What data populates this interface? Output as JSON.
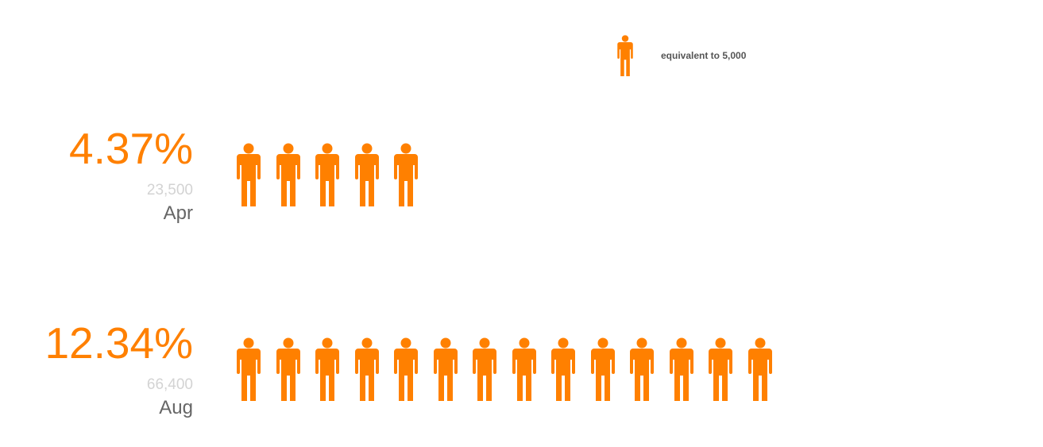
{
  "legend": {
    "label": "equivalent to 5,000",
    "unit_value": 5000
  },
  "colors": {
    "accent": "#ff8000",
    "count_text": "#d3d3d3",
    "month_text": "#666666",
    "legend_text": "#555555"
  },
  "icon_name": "person-icon",
  "chart_data": {
    "type": "pictogram",
    "unit": 5000,
    "rows": [
      {
        "category": "Apr",
        "percent": "4.37%",
        "count_label": "23,500",
        "value": 23500,
        "icons": 5
      },
      {
        "category": "Aug",
        "percent": "12.34%",
        "count_label": "66,400",
        "value": 66400,
        "icons": 14
      }
    ]
  }
}
